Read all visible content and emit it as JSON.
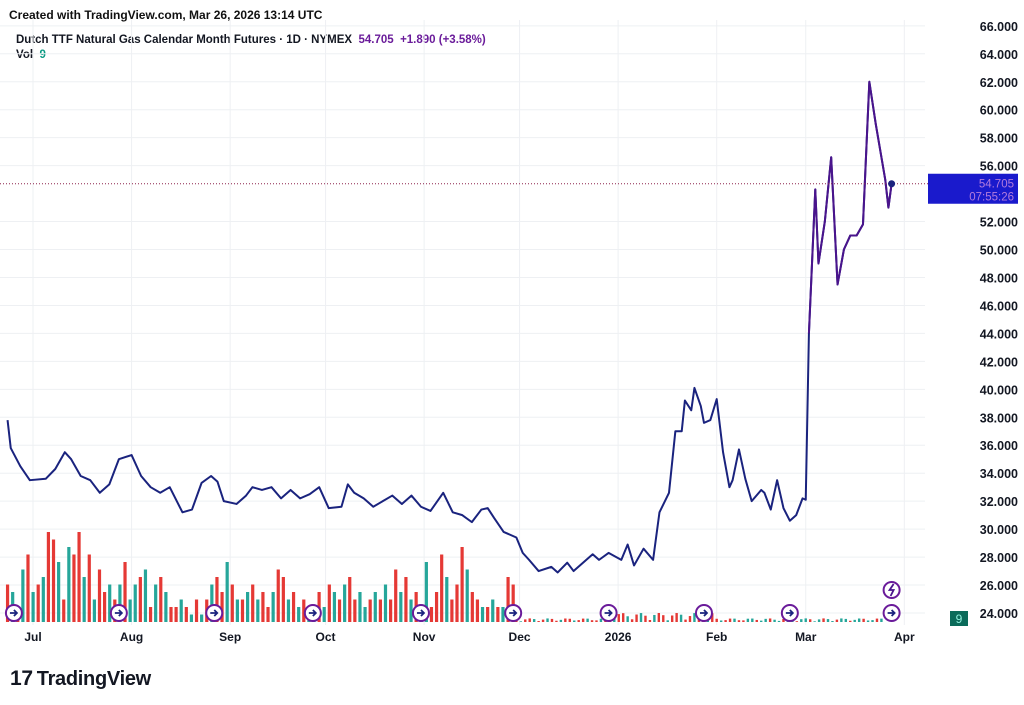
{
  "header": {
    "created": "Created with TradingView.com, Mar 26, 2026 13:14 UTC"
  },
  "legend": {
    "symbol": "Dutch TTF Natural Gas Calendar Month Futures · 1D · NYMEX",
    "price": "54.705",
    "change": "+1.890 (+3.58%)",
    "vol_label": "Vol",
    "vol_value": "9"
  },
  "price_label": {
    "price": "54.705",
    "countdown": "07:55:26"
  },
  "volume_label": "9",
  "logo": "TradingView",
  "colors": {
    "line": "#1a237e",
    "line_recent": "#4a148c",
    "up": "#26a69a",
    "down": "#e53935",
    "price_box": "#1a1acc",
    "marker": "#6a1b9a"
  },
  "chart_data": {
    "type": "line",
    "title": "Dutch TTF Natural Gas Calendar Month Futures · 1D · NYMEX",
    "ylim": [
      24,
      66
    ],
    "yticks": [
      "66.000",
      "64.000",
      "62.000",
      "60.000",
      "58.000",
      "56.000",
      "52.000",
      "50.000",
      "48.000",
      "46.000",
      "44.000",
      "42.000",
      "40.000",
      "38.000",
      "36.000",
      "34.000",
      "32.000",
      "30.000",
      "28.000",
      "26.000",
      "24.000"
    ],
    "ytick_values": [
      66,
      64,
      62,
      60,
      58,
      56,
      52,
      50,
      48,
      46,
      44,
      42,
      40,
      38,
      36,
      34,
      32,
      30,
      28,
      26,
      24
    ],
    "xticks": [
      {
        "label": "Jul",
        "day": 0
      },
      {
        "label": "Aug",
        "day": 31
      },
      {
        "label": "Sep",
        "day": 62
      },
      {
        "label": "Oct",
        "day": 92
      },
      {
        "label": "Nov",
        "day": 123
      },
      {
        "label": "Dec",
        "day": 153
      },
      {
        "label": "2026",
        "day": 184
      },
      {
        "label": "Feb",
        "day": 215
      },
      {
        "label": "Mar",
        "day": 243
      },
      {
        "label": "Apr",
        "day": 274
      }
    ],
    "x_unit": "days since Jul 1, 2025",
    "series": [
      {
        "name": "Close",
        "points": [
          [
            -8,
            37.8
          ],
          [
            -7,
            35.8
          ],
          [
            -4,
            34.5
          ],
          [
            -1,
            33.5
          ],
          [
            4,
            33.6
          ],
          [
            7,
            34.3
          ],
          [
            10,
            35.5
          ],
          [
            12,
            35
          ],
          [
            15,
            33.8
          ],
          [
            18,
            33.5
          ],
          [
            21,
            32.6
          ],
          [
            24,
            33.2
          ],
          [
            27,
            35
          ],
          [
            31,
            35.3
          ],
          [
            34,
            33.8
          ],
          [
            37,
            33
          ],
          [
            40,
            32.6
          ],
          [
            43,
            33
          ],
          [
            47,
            31.2
          ],
          [
            50,
            31.4
          ],
          [
            53,
            33.3
          ],
          [
            56,
            33.8
          ],
          [
            58,
            33.4
          ],
          [
            60,
            32
          ],
          [
            64,
            31.8
          ],
          [
            67,
            32.4
          ],
          [
            69,
            33
          ],
          [
            72,
            32.8
          ],
          [
            75,
            33
          ],
          [
            78,
            32.2
          ],
          [
            81,
            32.8
          ],
          [
            84,
            32.2
          ],
          [
            87,
            32.5
          ],
          [
            90,
            33
          ],
          [
            93,
            31.5
          ],
          [
            97,
            31.6
          ],
          [
            99,
            33.2
          ],
          [
            101,
            32.6
          ],
          [
            104,
            32.2
          ],
          [
            107,
            31.6
          ],
          [
            110,
            32
          ],
          [
            113,
            32.4
          ],
          [
            116,
            31.8
          ],
          [
            119,
            32.4
          ],
          [
            122,
            31.6
          ],
          [
            125,
            31.3
          ],
          [
            129,
            32.6
          ],
          [
            132,
            31.2
          ],
          [
            135,
            31
          ],
          [
            138,
            30.5
          ],
          [
            141,
            31.4
          ],
          [
            143,
            31.5
          ],
          [
            145,
            30.8
          ],
          [
            148,
            29.8
          ],
          [
            152,
            29.4
          ],
          [
            154,
            28.3
          ],
          [
            156,
            27.8
          ],
          [
            159,
            27
          ],
          [
            163,
            27.3
          ],
          [
            165,
            26.9
          ],
          [
            168,
            27.6
          ],
          [
            170,
            27
          ],
          [
            173,
            27.6
          ],
          [
            176,
            28.2
          ],
          [
            178,
            27.8
          ],
          [
            181,
            28.3
          ],
          [
            185,
            27.8
          ],
          [
            187,
            28.9
          ],
          [
            189,
            27.4
          ],
          [
            192,
            28.6
          ],
          [
            195,
            27.8
          ],
          [
            197,
            31.2
          ],
          [
            200,
            32.6
          ],
          [
            202,
            37
          ],
          [
            204,
            37
          ],
          [
            205,
            39.2
          ],
          [
            207,
            38.5
          ],
          [
            208,
            40.1
          ],
          [
            210,
            38.8
          ],
          [
            211,
            37.6
          ],
          [
            213,
            37.8
          ],
          [
            215,
            39.3
          ],
          [
            217,
            35.5
          ],
          [
            219,
            33
          ],
          [
            220,
            33.5
          ],
          [
            222,
            35.7
          ],
          [
            224,
            33.6
          ],
          [
            226,
            32
          ],
          [
            229,
            32.8
          ],
          [
            230,
            32.6
          ],
          [
            232,
            31.4
          ],
          [
            234,
            33.5
          ],
          [
            236,
            31.5
          ],
          [
            238,
            30.6
          ],
          [
            240,
            31
          ],
          [
            242,
            32.2
          ],
          [
            243,
            32.1
          ],
          [
            244,
            44
          ],
          [
            246,
            54.3
          ],
          [
            247,
            49
          ],
          [
            249,
            52
          ],
          [
            251,
            56.6
          ],
          [
            253,
            47.5
          ],
          [
            255,
            50
          ],
          [
            257,
            51
          ],
          [
            259,
            51
          ],
          [
            261,
            51.8
          ],
          [
            263,
            62
          ],
          [
            265,
            59
          ],
          [
            268,
            55
          ],
          [
            269,
            53
          ],
          [
            270,
            54.705
          ]
        ]
      }
    ],
    "volume": {
      "values": [
        5,
        4,
        2,
        7,
        9,
        4,
        5,
        6,
        12,
        11,
        8,
        3,
        10,
        9,
        12,
        6,
        9,
        3,
        7,
        4,
        5,
        3,
        5,
        8,
        3,
        5,
        6,
        7,
        2,
        5,
        6,
        4,
        2,
        2,
        3,
        2,
        1,
        3,
        1,
        3,
        5,
        6,
        4,
        8,
        5,
        3,
        3,
        4,
        5,
        3,
        4,
        2,
        4,
        7,
        6,
        3,
        4,
        2,
        3,
        2,
        1,
        4,
        2,
        5,
        4,
        3,
        5,
        6,
        3,
        4,
        2,
        3,
        4,
        3,
        5,
        3,
        7,
        4,
        6,
        3,
        4,
        2,
        8,
        2,
        4,
        9,
        6,
        3,
        5,
        10,
        7,
        4,
        3,
        2,
        2,
        3,
        2,
        2,
        6,
        5
      ],
      "up": [
        0,
        1,
        0,
        1,
        0,
        1,
        0,
        1,
        0,
        0,
        1,
        0,
        1,
        0,
        0,
        1,
        0,
        1,
        0,
        0,
        1,
        0,
        1,
        0,
        1,
        1,
        0,
        1,
        0,
        1,
        0,
        1,
        0,
        0,
        1,
        0,
        1,
        0,
        1,
        0,
        1,
        0,
        0,
        1,
        0,
        1,
        0,
        1,
        0,
        1,
        0,
        0,
        1,
        0,
        0,
        1,
        0,
        1,
        0,
        1,
        1,
        0,
        1,
        0,
        1,
        0,
        1,
        0,
        0,
        1,
        1,
        0,
        1,
        0,
        1,
        0,
        0,
        1,
        0,
        1,
        0,
        1,
        1,
        0,
        0,
        0,
        1,
        0,
        0,
        0,
        1,
        0,
        0,
        1,
        0,
        1,
        0,
        1,
        0,
        0
      ],
      "day_range": [
        -8,
        151
      ]
    },
    "event_marker_days": [
      -6,
      27,
      57,
      88,
      122,
      151,
      181,
      211,
      238,
      270
    ],
    "lightning_marker_day": 270,
    "last_price": 54.705
  }
}
